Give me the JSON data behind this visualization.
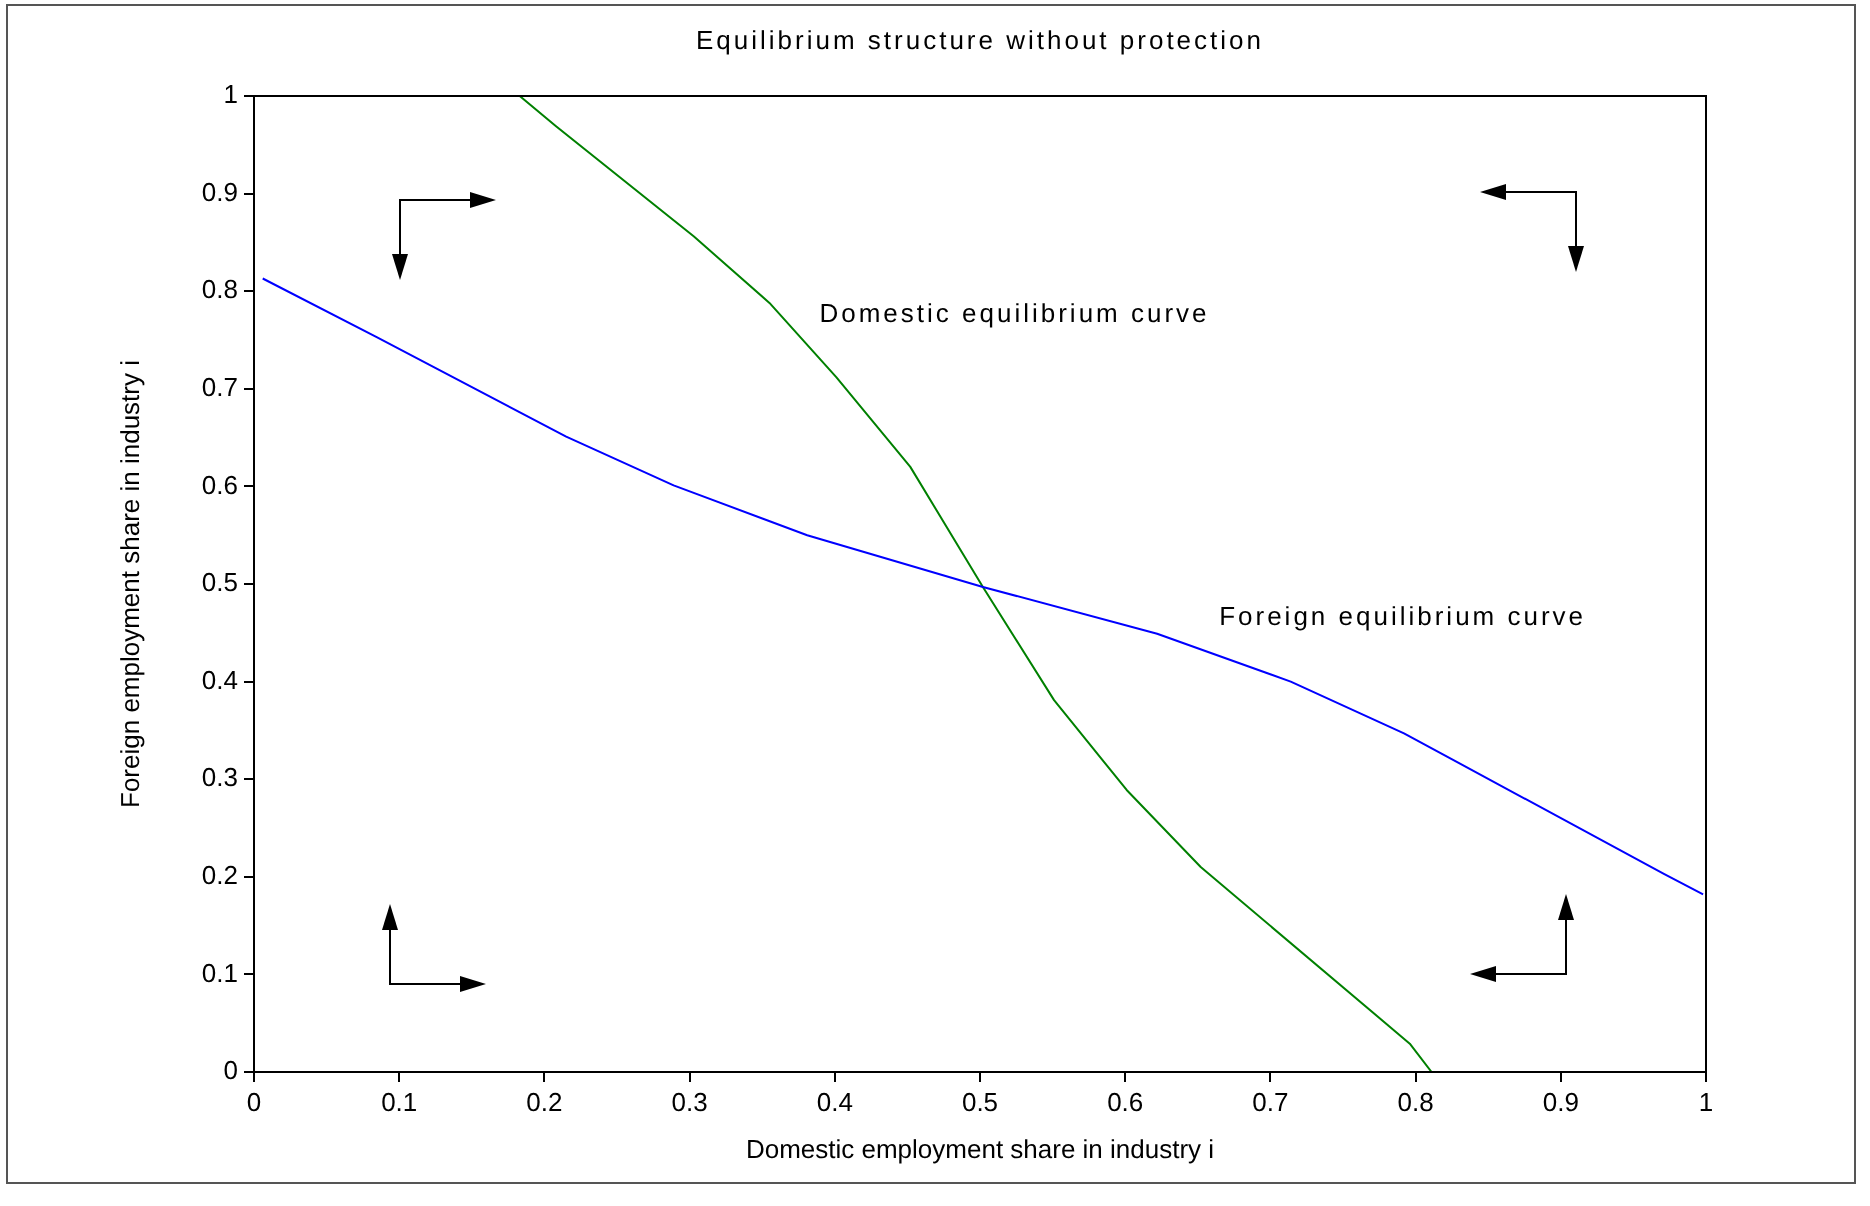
{
  "chart_data": {
    "type": "line",
    "title": "Equilibrium structure without protection",
    "xlabel": "Domestic employment share in industry i",
    "ylabel": "Foreign employment share in industry i",
    "xlim": [
      0,
      1
    ],
    "ylim": [
      0,
      1
    ],
    "xticks": [
      0,
      0.1,
      0.2,
      0.3,
      0.4,
      0.5,
      0.6,
      0.7,
      0.8,
      0.9,
      1
    ],
    "yticks": [
      0,
      0.1,
      0.2,
      0.3,
      0.4,
      0.5,
      0.6,
      0.7,
      0.8,
      0.9,
      1
    ],
    "grid": false,
    "legend": false,
    "marker": "none",
    "line_style": "solid",
    "series": [
      {
        "name": "Foreign equilibrium curve",
        "color": "#0000ff",
        "x": [
          0.006,
          0.0845,
          0.215,
          0.289,
          0.381,
          0.502,
          0.622,
          0.714,
          0.792,
          0.971,
          0.998
        ],
        "values": [
          0.813,
          0.753,
          0.651,
          0.601,
          0.55,
          0.497,
          0.449,
          0.4,
          0.347,
          0.203,
          0.182
        ]
      },
      {
        "name": "Domestic equilibrium curve",
        "color": "#008000",
        "x": [
          0.183,
          0.208,
          0.303,
          0.355,
          0.401,
          0.452,
          0.502,
          0.551,
          0.601,
          0.652,
          0.796,
          0.811
        ],
        "values": [
          1,
          0.969,
          0.856,
          0.788,
          0.712,
          0.62,
          0.497,
          0.381,
          0.289,
          0.21,
          0.029,
          0
        ]
      }
    ]
  }
}
